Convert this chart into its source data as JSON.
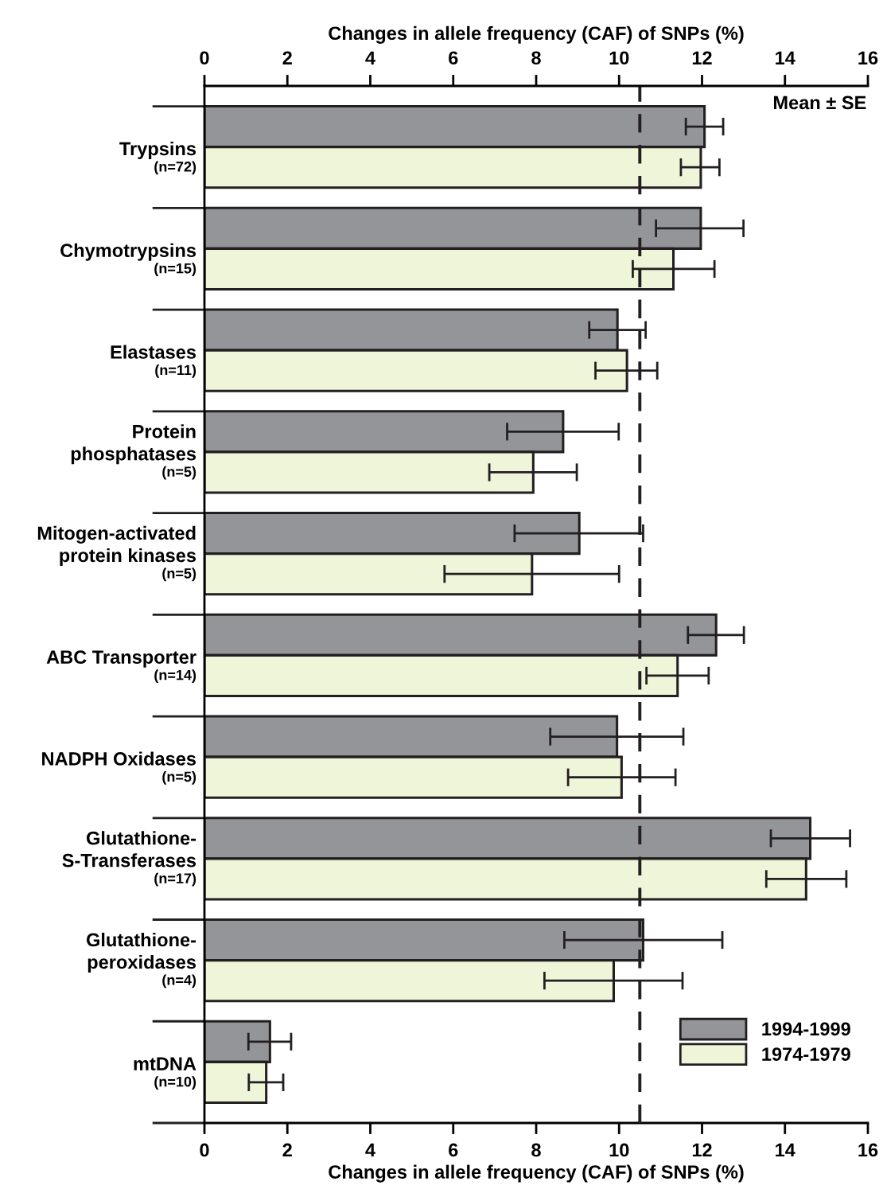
{
  "chart_data": {
    "type": "bar",
    "orientation": "horizontal",
    "xlabel": "Changes in allele frequency (CAF) of SNPs (%)",
    "x2label": "Changes in allele frequency (CAF) of SNPs (%)",
    "categories": [
      "Trypsins\n(n=72)",
      "Chymotrypsins\n(n=15)",
      "Elastases\n(n=11)",
      "Protein\nphosphatases\n(n=5)",
      "Mitogen-activated\nprotein kinases\n(n=5)",
      "ABC Transporter\n(n=14)",
      "NADPH Oxidases\n(n=5)",
      "Glutathione-\nS-Transferases\n(n=17)",
      "Glutathione-\nperoxidases\n(n=4)",
      "mtDNA\n(n=10)"
    ],
    "series": [
      {
        "name": "1994-1999",
        "color": "#939598",
        "values": [
          12.06,
          11.97,
          9.96,
          8.65,
          9.04,
          12.34,
          9.95,
          14.61,
          10.58,
          1.58
        ],
        "errors": [
          [
            11.61,
            12.51
          ],
          [
            10.89,
            13.0
          ],
          [
            9.28,
            10.64
          ],
          [
            7.3,
            9.99
          ],
          [
            7.48,
            10.58
          ],
          [
            11.66,
            13.01
          ],
          [
            8.34,
            11.55
          ],
          [
            13.66,
            15.57
          ],
          [
            8.68,
            12.49
          ],
          [
            1.06,
            2.09
          ]
        ]
      },
      {
        "name": "1974-1979",
        "color": "#eef5d8",
        "values": [
          11.97,
          11.31,
          10.19,
          7.93,
          7.9,
          11.41,
          10.06,
          14.51,
          9.87,
          1.49
        ],
        "errors": [
          [
            11.49,
            12.42
          ],
          [
            10.33,
            12.3
          ],
          [
            9.43,
            10.92
          ],
          [
            6.87,
            8.98
          ],
          [
            5.79,
            10.0
          ],
          [
            10.66,
            12.16
          ],
          [
            8.77,
            11.36
          ],
          [
            13.55,
            15.48
          ],
          [
            8.2,
            11.53
          ],
          [
            1.07,
            1.9
          ]
        ]
      }
    ],
    "xlim": [
      0,
      16
    ],
    "xticks": [
      0,
      2,
      4,
      6,
      8,
      10,
      12,
      14,
      16
    ],
    "x2lim": [
      0,
      16
    ],
    "x2ticks": [
      0,
      2,
      4,
      6,
      8,
      10,
      12,
      14,
      16
    ],
    "ref_lines": [
      {
        "axis": "x",
        "value": 10.5,
        "line_style": "dashed",
        "color": "#231f20"
      }
    ],
    "annotations": [
      "Mean ± SE"
    ],
    "legend": "bottom right",
    "grid": false
  }
}
